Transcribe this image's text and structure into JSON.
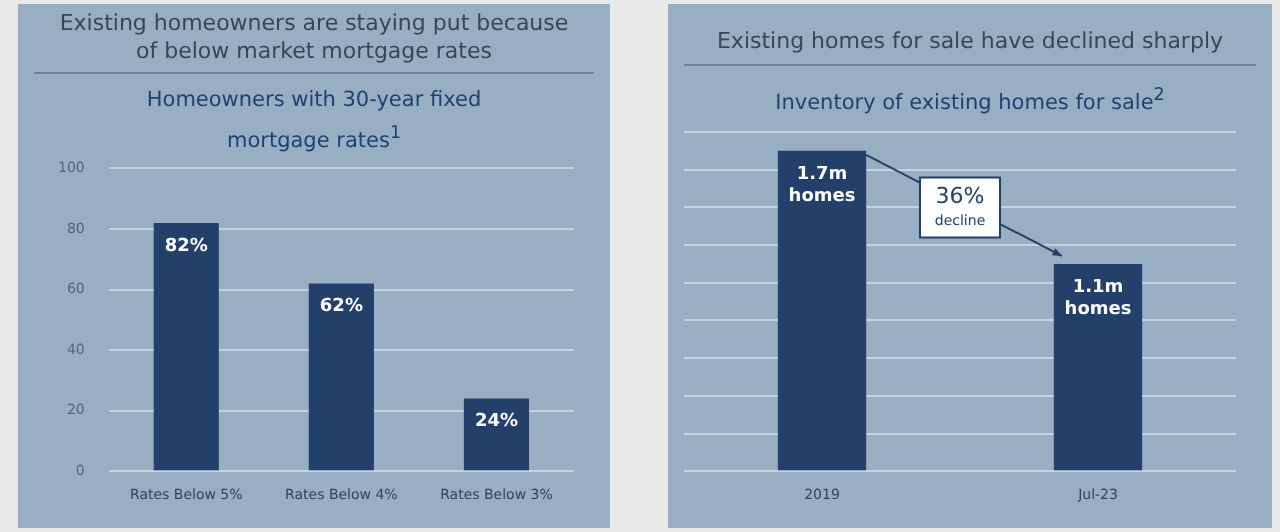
{
  "chart_data": [
    {
      "type": "bar",
      "title": "Existing homeowners are staying put because of below market mortgage rates",
      "subtitle": "Homeowners with 30-year fixed mortgage rates$^{1}$",
      "categories": [
        "Rates Below 5%",
        "Rates Below 4%",
        "Rates Below 3%"
      ],
      "values": [
        82,
        62,
        24
      ],
      "value_labels": [
        "82%",
        "62%",
        "24%"
      ],
      "color": "#22406a",
      "ylim": [
        0,
        100
      ],
      "yticks": [
        0,
        20,
        40,
        60,
        80,
        100
      ],
      "grid": "y"
    },
    {
      "type": "bar",
      "title": "Existing homes for sale have declined sharply",
      "subtitle": "Inventory of existing homes for sale$^{2}$",
      "categories": [
        "2019",
        "Jul-23"
      ],
      "values": [
        1.7,
        1.1
      ],
      "value_labels": [
        "1.7m homes",
        "1.1m homes"
      ],
      "color": "#22406a",
      "ylim": [
        0,
        1.8
      ],
      "yticks": [
        {
          "value": 0,
          "label": null
        },
        {
          "value": 0.2,
          "label": null
        },
        {
          "value": 0.4,
          "label": null
        },
        {
          "value": 0.6,
          "label": null
        },
        {
          "value": 0.8,
          "label": null
        },
        {
          "value": 1,
          "label": null
        },
        {
          "value": 1.2,
          "label": null
        },
        {
          "value": 1.4,
          "label": null
        },
        {
          "value": 1.6,
          "label": null
        },
        {
          "value": 1.8,
          "label": null
        }
      ],
      "grid": "y",
      "tick_labels": "x",
      "annotations": [
        "36% decline"
      ]
    }
  ]
}
